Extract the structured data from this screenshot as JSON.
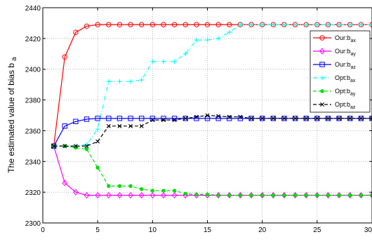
{
  "chart_data": {
    "type": "line",
    "title": "",
    "xlabel": "",
    "ylabel_main": "The estimated value of bias b",
    "ylabel_sub": "a",
    "xlim": [
      0,
      30
    ],
    "ylim": [
      2300,
      2440
    ],
    "xticks": [
      0,
      5,
      10,
      15,
      20,
      25,
      30
    ],
    "yticks": [
      2300,
      2320,
      2340,
      2360,
      2380,
      2400,
      2420,
      2440
    ],
    "grid": true,
    "legend_position": "top-right",
    "x": [
      1,
      2,
      3,
      4,
      5,
      6,
      7,
      8,
      9,
      10,
      11,
      12,
      13,
      14,
      15,
      16,
      17,
      18,
      19,
      20,
      21,
      22,
      23,
      24,
      25,
      26,
      27,
      28,
      29,
      30
    ],
    "series": [
      {
        "label_main": "Our:b",
        "label_sub": "ax",
        "color": "#ff0000",
        "linestyle": "solid",
        "marker": "circle",
        "values": [
          2350,
          2408,
          2424,
          2428,
          2429,
          2429,
          2429,
          2429,
          2429,
          2429,
          2429,
          2429,
          2429,
          2429,
          2429,
          2429,
          2429,
          2429,
          2429,
          2429,
          2429,
          2429,
          2429,
          2429,
          2429,
          2429,
          2429,
          2429,
          2429,
          2429
        ]
      },
      {
        "label_main": "Our:b",
        "label_sub": "ay",
        "color": "#ff00ff",
        "linestyle": "solid",
        "marker": "diamond",
        "values": [
          2350,
          2326,
          2320,
          2318,
          2318,
          2318,
          2318,
          2318,
          2318,
          2318,
          2318,
          2318,
          2318,
          2318,
          2318,
          2318,
          2318,
          2318,
          2318,
          2318,
          2318,
          2318,
          2318,
          2318,
          2318,
          2318,
          2318,
          2318,
          2318,
          2318
        ]
      },
      {
        "label_main": "Our:b",
        "label_sub": "az",
        "color": "#0000ff",
        "linestyle": "solid",
        "marker": "square",
        "values": [
          2350,
          2363,
          2366,
          2367.5,
          2368,
          2368,
          2368,
          2368,
          2368,
          2368,
          2368,
          2368,
          2368,
          2368,
          2368,
          2368,
          2368,
          2368,
          2368,
          2368,
          2368,
          2368,
          2368,
          2368,
          2368,
          2368,
          2368,
          2368,
          2368,
          2368
        ]
      },
      {
        "label_main": "Opt:b",
        "label_sub": "ax",
        "color": "#00ffff",
        "linestyle": "dashdot",
        "marker": "plus",
        "values": [
          2350,
          2350,
          2350,
          2351,
          2361,
          2392,
          2392,
          2392,
          2393,
          2405,
          2405,
          2405,
          2410,
          2419,
          2419,
          2420,
          2424,
          2429,
          2429,
          2429,
          2429,
          2429,
          2429,
          2429,
          2429,
          2429,
          2429,
          2429,
          2429,
          2429
        ]
      },
      {
        "label_main": "Opt:b",
        "label_sub": "ay",
        "color": "#00dd00",
        "linestyle": "dashed",
        "marker": "dot",
        "values": [
          2350,
          2350,
          2349,
          2348,
          2336,
          2324,
          2324,
          2324,
          2322,
          2321,
          2321,
          2321,
          2319,
          2318.5,
          2318.5,
          2318,
          2318,
          2318,
          2318,
          2318,
          2318,
          2318,
          2318,
          2318,
          2318,
          2318,
          2318,
          2318,
          2318,
          2318
        ]
      },
      {
        "label_main": "Opt:b",
        "label_sub": "az",
        "color": "#000000",
        "linestyle": "dashed",
        "marker": "x",
        "values": [
          2350,
          2350,
          2350,
          2350,
          2353,
          2363,
          2363,
          2363,
          2363,
          2367,
          2367,
          2367,
          2368,
          2369,
          2370,
          2369.5,
          2369,
          2369,
          2368,
          2368,
          2368,
          2368,
          2368,
          2368,
          2368,
          2368,
          2368,
          2368,
          2368,
          2368
        ]
      }
    ]
  }
}
